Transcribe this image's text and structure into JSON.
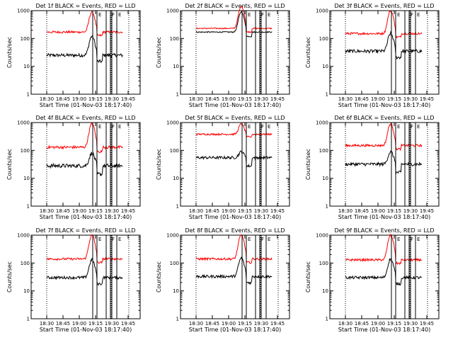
{
  "figure": {
    "background": "#ffffff"
  },
  "chart_data": [
    {
      "type": "line",
      "title": "Det 1f BLACK = Events, RED = LLD",
      "ylabel": "Counts/sec",
      "xlabel": "Start Time (01-Nov-03 18:17:40)",
      "x_ticks": [
        "18:30",
        "18:45",
        "19:00",
        "19:15",
        "19:30",
        "19:45"
      ],
      "y_ticks": [
        "1",
        "10",
        "100",
        "1000"
      ],
      "ylim": [
        1,
        1000
      ],
      "y_scale": "log",
      "annotation_labels": [
        "E",
        "F",
        "E"
      ],
      "series": [
        {
          "name": "BLACK = Events",
          "color": "#000000",
          "base": 25,
          "peak": 120,
          "dip": 0.6,
          "noise": 0.06
        },
        {
          "name": "RED = LLD",
          "color": "#ff0000",
          "base": 170,
          "peak": 900,
          "dip": 0.75,
          "noise": 0.04
        }
      ]
    },
    {
      "type": "line",
      "title": "Det 2f BLACK = Events, RED = LLD",
      "ylabel": "Counts/sec",
      "xlabel": "Start Time (01-Nov-03 18:17:40)",
      "x_ticks": [
        "18:30",
        "18:45",
        "19:00",
        "19:15",
        "19:30",
        "19:45"
      ],
      "y_ticks": [
        "1",
        "10",
        "100",
        "1000"
      ],
      "ylim": [
        1,
        1000
      ],
      "y_scale": "log",
      "annotation_labels": [
        "E",
        "F",
        "E"
      ],
      "series": [
        {
          "name": "BLACK = Events",
          "color": "#000000",
          "base": 170,
          "peak": 900,
          "dip": 0.7,
          "noise": 0.02
        },
        {
          "name": "RED = LLD",
          "color": "#ff0000",
          "base": 230,
          "peak": 1400,
          "dip": 0.75,
          "noise": 0.02
        }
      ]
    },
    {
      "type": "line",
      "title": "Det 3f BLACK = Events, RED = LLD",
      "ylabel": "Counts/sec",
      "xlabel": "Start Time (01-Nov-03 18:17:40)",
      "x_ticks": [
        "18:30",
        "18:45",
        "19:00",
        "19:15",
        "19:30",
        "19:45"
      ],
      "y_ticks": [
        "1",
        "10",
        "100",
        "1000"
      ],
      "ylim": [
        1,
        1000
      ],
      "y_scale": "log",
      "annotation_labels": [
        "E",
        "F",
        "E"
      ],
      "series": [
        {
          "name": "BLACK = Events",
          "color": "#000000",
          "base": 35,
          "peak": 150,
          "dip": 0.6,
          "noise": 0.06
        },
        {
          "name": "RED = LLD",
          "color": "#ff0000",
          "base": 150,
          "peak": 1000,
          "dip": 0.75,
          "noise": 0.04
        }
      ]
    },
    {
      "type": "line",
      "title": "Det 4f BLACK = Events, RED = LLD",
      "ylabel": "Counts/sec",
      "xlabel": "Start Time (01-Nov-03 18:17:40)",
      "x_ticks": [
        "18:30",
        "18:45",
        "19:00",
        "19:15",
        "19:30",
        "19:45"
      ],
      "y_ticks": [
        "1",
        "10",
        "100",
        "1000"
      ],
      "ylim": [
        1,
        1000
      ],
      "y_scale": "log",
      "annotation_labels": [
        "E",
        "F",
        "E"
      ],
      "series": [
        {
          "name": "BLACK = Events",
          "color": "#000000",
          "base": 28,
          "peak": 80,
          "dip": 0.5,
          "noise": 0.07
        },
        {
          "name": "RED = LLD",
          "color": "#ff0000",
          "base": 130,
          "peak": 900,
          "dip": 0.7,
          "noise": 0.05
        }
      ]
    },
    {
      "type": "line",
      "title": "Det 5f BLACK = Events, RED = LLD",
      "ylabel": "Counts/sec",
      "xlabel": "Start Time (01-Nov-03 18:17:40)",
      "x_ticks": [
        "18:30",
        "18:45",
        "19:00",
        "19:15",
        "19:30",
        "19:45"
      ],
      "y_ticks": [
        "1",
        "10",
        "100",
        "1000"
      ],
      "ylim": [
        1,
        1000
      ],
      "y_scale": "log",
      "annotation_labels": [
        "E",
        "F",
        "E"
      ],
      "series": [
        {
          "name": "BLACK = Events",
          "color": "#000000",
          "base": 55,
          "peak": 90,
          "dip": 0.5,
          "noise": 0.05
        },
        {
          "name": "RED = LLD",
          "color": "#ff0000",
          "base": 380,
          "peak": 900,
          "dip": 0.8,
          "noise": 0.03
        }
      ]
    },
    {
      "type": "line",
      "title": "Det 6f BLACK = Events, RED = LLD",
      "ylabel": "Counts/sec",
      "xlabel": "Start Time (01-Nov-03 18:17:40)",
      "x_ticks": [
        "18:30",
        "18:45",
        "19:00",
        "19:15",
        "19:30",
        "19:45"
      ],
      "y_ticks": [
        "1",
        "10",
        "100",
        "1000"
      ],
      "ylim": [
        1,
        1000
      ],
      "y_scale": "log",
      "annotation_labels": [
        "E",
        "F",
        "E"
      ],
      "series": [
        {
          "name": "BLACK = Events",
          "color": "#000000",
          "base": 32,
          "peak": 90,
          "dip": 0.5,
          "noise": 0.06
        },
        {
          "name": "RED = LLD",
          "color": "#ff0000",
          "base": 150,
          "peak": 900,
          "dip": 0.75,
          "noise": 0.04
        }
      ]
    },
    {
      "type": "line",
      "title": "Det 7f BLACK = Events, RED = LLD",
      "ylabel": "Counts/sec",
      "xlabel": "Start Time (01-Nov-03 18:17:40)",
      "x_ticks": [
        "18:30",
        "18:45",
        "19:00",
        "19:15",
        "19:30",
        "19:45"
      ],
      "y_ticks": [
        "1",
        "10",
        "100",
        "1000"
      ],
      "ylim": [
        1,
        1000
      ],
      "y_scale": "log",
      "annotation_labels": [
        "E",
        "F",
        "E"
      ],
      "series": [
        {
          "name": "BLACK = Events",
          "color": "#000000",
          "base": 30,
          "peak": 130,
          "dip": 0.6,
          "noise": 0.05
        },
        {
          "name": "RED = LLD",
          "color": "#ff0000",
          "base": 140,
          "peak": 1000,
          "dip": 0.75,
          "noise": 0.04
        }
      ]
    },
    {
      "type": "line",
      "title": "Det 8f BLACK = Events, RED = LLD",
      "ylabel": "Counts/sec",
      "xlabel": "Start Time (01-Nov-03 18:17:40)",
      "x_ticks": [
        "18:30",
        "18:45",
        "19:00",
        "19:15",
        "19:30",
        "19:45"
      ],
      "y_ticks": [
        "1",
        "10",
        "100",
        "1000"
      ],
      "ylim": [
        1,
        1000
      ],
      "y_scale": "log",
      "annotation_labels": [
        "E",
        "F",
        "E"
      ],
      "series": [
        {
          "name": "BLACK = Events",
          "color": "#000000",
          "base": 33,
          "peak": 150,
          "dip": 0.6,
          "noise": 0.05
        },
        {
          "name": "RED = LLD",
          "color": "#ff0000",
          "base": 140,
          "peak": 1000,
          "dip": 0.75,
          "noise": 0.04
        }
      ]
    },
    {
      "type": "line",
      "title": "Det 9f BLACK = Events, RED = LLD",
      "ylabel": "Counts/sec",
      "xlabel": "Start Time (01-Nov-03 18:17:40)",
      "x_ticks": [
        "18:30",
        "18:45",
        "19:00",
        "19:15",
        "19:30",
        "19:45"
      ],
      "y_ticks": [
        "1",
        "10",
        "100",
        "1000"
      ],
      "ylim": [
        1,
        1000
      ],
      "y_scale": "log",
      "annotation_labels": [
        "E",
        "F",
        "E"
      ],
      "series": [
        {
          "name": "BLACK = Events",
          "color": "#000000",
          "base": 30,
          "peak": 140,
          "dip": 0.6,
          "noise": 0.05
        },
        {
          "name": "RED = LLD",
          "color": "#ff0000",
          "base": 130,
          "peak": 1000,
          "dip": 0.75,
          "noise": 0.04
        }
      ]
    }
  ]
}
